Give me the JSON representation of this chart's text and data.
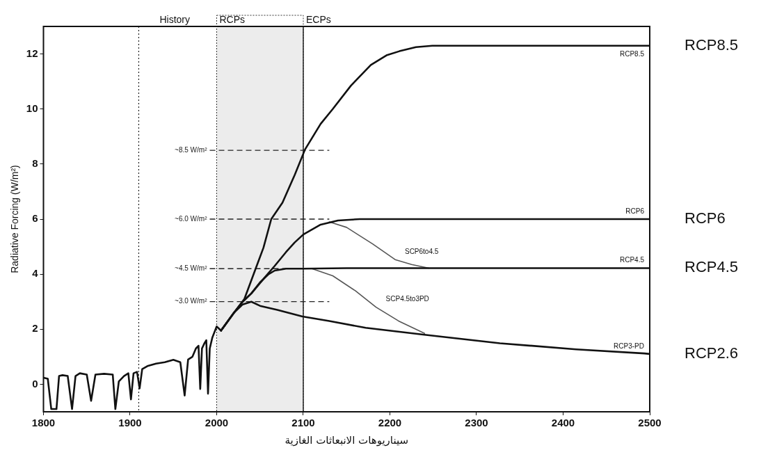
{
  "chart_data": {
    "type": "line",
    "xlabel": "سيناريوهات الانبعاثات الغازية",
    "ylabel": "Radiative Forcing (W/m²)",
    "xlim": [
      1800,
      2500
    ],
    "xticks": [
      1800,
      1900,
      2000,
      2100,
      2200,
      2300,
      2400,
      2500
    ],
    "ylim": [
      -1,
      13
    ],
    "yticks": [
      0,
      2,
      4,
      6,
      8,
      10,
      12
    ],
    "grid": false,
    "legend": false,
    "marker": "none",
    "line_style": "solid",
    "series": [
      {
        "color": "#111111",
        "x": [
          1800,
          1805,
          1809,
          1815,
          1818,
          1822,
          1828,
          1833,
          1837,
          1842,
          1850,
          1855,
          1860,
          1870,
          1880,
          1883,
          1887,
          1893,
          1898,
          1901,
          1904,
          1908,
          1911,
          1914,
          1920,
          1930,
          1940,
          1950,
          1958,
          1963,
          1967,
          1972,
          1976,
          1979,
          1981,
          1983,
          1986,
          1988,
          1990,
          1992,
          1995,
          2000,
          2005
        ],
        "values": [
          0.24,
          0.2,
          -0.9,
          -0.9,
          0.3,
          0.33,
          0.3,
          -0.9,
          0.3,
          0.4,
          0.35,
          -0.6,
          0.35,
          0.38,
          0.35,
          -0.9,
          0.1,
          0.3,
          0.4,
          -0.55,
          0.4,
          0.45,
          -0.15,
          0.55,
          0.66,
          0.75,
          0.8,
          0.89,
          0.8,
          -0.41,
          0.9,
          1.0,
          1.3,
          1.4,
          -0.17,
          1.3,
          1.5,
          1.6,
          -0.34,
          1.3,
          1.7,
          2.1,
          1.95
        ]
      },
      {
        "name": "RCP8.5",
        "color": "#111111",
        "x": [
          2005,
          2020,
          2032,
          2045,
          2054,
          2063,
          2076,
          2090,
          2102,
          2120,
          2134,
          2155,
          2178,
          2196,
          2211,
          2230,
          2249,
          2500
        ],
        "values": [
          1.95,
          2.6,
          3.1,
          4.2,
          4.96,
          6.0,
          6.6,
          7.6,
          8.53,
          9.46,
          10.0,
          10.85,
          11.6,
          11.95,
          12.1,
          12.25,
          12.3,
          12.3
        ]
      },
      {
        "name": "RCP6",
        "color": "#111111",
        "x": [
          2005,
          2020,
          2030,
          2040,
          2056,
          2067,
          2080,
          2090,
          2100,
          2120,
          2140,
          2165,
          2500
        ],
        "values": [
          1.95,
          2.6,
          3.0,
          3.3,
          3.9,
          4.3,
          4.8,
          5.15,
          5.44,
          5.8,
          5.95,
          6.0,
          6.0
        ]
      },
      {
        "name": "RCP4.5",
        "color": "#111111",
        "x": [
          2005,
          2020,
          2030,
          2040,
          2050,
          2060,
          2067,
          2080,
          2100,
          2150,
          2500
        ],
        "values": [
          1.95,
          2.6,
          3.0,
          3.3,
          3.7,
          4.0,
          4.13,
          4.2,
          4.2,
          4.22,
          4.22
        ]
      },
      {
        "name": "SCP6to4.5",
        "color": "#555555",
        "x": [
          2130,
          2150,
          2180,
          2206,
          2225,
          2245
        ],
        "values": [
          5.9,
          5.7,
          5.1,
          4.53,
          4.35,
          4.22
        ]
      },
      {
        "name": "SCP4.5to3PD",
        "color": "#555555",
        "x": [
          2110,
          2134,
          2160,
          2184,
          2210,
          2240
        ],
        "values": [
          4.2,
          3.94,
          3.4,
          2.8,
          2.3,
          1.85
        ]
      },
      {
        "name": "RCP3-PD",
        "color": "#111111",
        "x": [
          2005,
          2020,
          2030,
          2040,
          2050,
          2070,
          2099,
          2130,
          2172,
          2240,
          2327,
          2415,
          2494,
          2500
        ],
        "values": [
          1.95,
          2.6,
          2.9,
          3.0,
          2.85,
          2.7,
          2.46,
          2.3,
          2.05,
          1.8,
          1.49,
          1.27,
          1.12,
          1.1
        ]
      }
    ],
    "ref_lines": [
      {
        "axis": "y",
        "value": 8.5,
        "label": "~8.5 W/m²",
        "line_style": "dashed"
      },
      {
        "axis": "y",
        "value": 6,
        "label": "~6.0 W/m²",
        "line_style": "dashed"
      },
      {
        "axis": "y",
        "value": 4.2,
        "label": "~4.5 W/m²",
        "line_style": "dashed"
      },
      {
        "axis": "y",
        "value": 3,
        "label": "~3.0 W/m²",
        "line_style": "dashed"
      },
      {
        "axis": "x",
        "value": 1910,
        "label": "History",
        "line_style": "dotted"
      },
      {
        "axis": "x",
        "value": 2100,
        "label": "ECPs",
        "line_style": "solid"
      }
    ],
    "bands": [
      {
        "axis": "x",
        "from": 2000,
        "to": 2100,
        "label": "RCPs",
        "color": "#ececec"
      }
    ],
    "annotations": [
      "RCP8.5",
      "RCP6",
      "RCP4.5",
      "RCP2.6"
    ]
  }
}
